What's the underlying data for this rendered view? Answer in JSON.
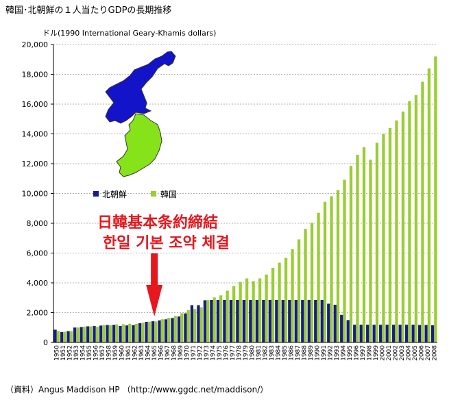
{
  "title": "韓国･北朝鮮の１人当たりGDPの長期推移",
  "source": "（資料）Angus Maddison HP （http://www.ggdc.net/maddison/）",
  "colors": {
    "north": "#1a1a8c",
    "south": "#9acd32",
    "arrow": "#e8161d",
    "map_north": "#1313c9",
    "map_south": "#86e31a"
  },
  "chart_data": {
    "type": "bar",
    "ylabel": "ドル(1990 International Geary-Khamis dollars)",
    "ylim": [
      0,
      20000
    ],
    "yticks": [
      "0",
      "2,000",
      "4,000",
      "6,000",
      "8,000",
      "10,000",
      "12,000",
      "14,000",
      "16,000",
      "18,000",
      "20,000"
    ],
    "grid": true,
    "legend_position": "middle-left",
    "categories": [
      "1950",
      "1951",
      "1952",
      "1953",
      "1954",
      "1955",
      "1956",
      "1957",
      "1958",
      "1959",
      "1960",
      "1961",
      "1962",
      "1963",
      "1964",
      "1965",
      "1966",
      "1967",
      "1968",
      "1969",
      "1970",
      "1971",
      "1972",
      "1973",
      "1974",
      "1975",
      "1976",
      "1977",
      "1978",
      "1979",
      "1980",
      "1981",
      "1982",
      "1983",
      "1984",
      "1985",
      "1986",
      "1987",
      "1988",
      "1989",
      "1990",
      "1991",
      "1992",
      "1993",
      "1994",
      "1995",
      "1996",
      "1997",
      "1998",
      "1999",
      "2000",
      "2001",
      "2002",
      "2003",
      "2004",
      "2005",
      "2006",
      "2007",
      "2008"
    ],
    "series": [
      {
        "name": "北朝鮮",
        "values": [
          854,
          690,
          760,
          1000,
          1030,
          1080,
          1100,
          1130,
          1170,
          1180,
          1105,
          1140,
          1160,
          1290,
          1380,
          1420,
          1480,
          1550,
          1640,
          1740,
          1950,
          2500,
          2500,
          2830,
          2850,
          2850,
          2850,
          2850,
          2850,
          2850,
          2850,
          2850,
          2850,
          2850,
          2850,
          2850,
          2850,
          2850,
          2850,
          2850,
          2850,
          2850,
          2600,
          2530,
          1850,
          1500,
          1190,
          1190,
          1190,
          1190,
          1190,
          1190,
          1190,
          1190,
          1190,
          1190,
          1170,
          1170,
          1150
        ]
      },
      {
        "name": "韓国",
        "values": [
          770,
          720,
          760,
          1000,
          1060,
          1080,
          1050,
          1160,
          1150,
          1210,
          1220,
          1250,
          1240,
          1320,
          1390,
          1410,
          1550,
          1650,
          1780,
          1960,
          2170,
          2240,
          2360,
          2840,
          3020,
          3160,
          3470,
          3780,
          4060,
          4300,
          4110,
          4300,
          4560,
          5010,
          5350,
          5670,
          6260,
          6920,
          7620,
          8030,
          8700,
          9440,
          9820,
          10230,
          10920,
          11850,
          12600,
          13100,
          12270,
          13400,
          14000,
          14400,
          14900,
          15500,
          16200,
          16600,
          17500,
          18400,
          19200
        ]
      }
    ],
    "annotations": [
      "日韓基本条約締結",
      "한일 기본 조약 체결"
    ],
    "annotation_year": "1965"
  }
}
